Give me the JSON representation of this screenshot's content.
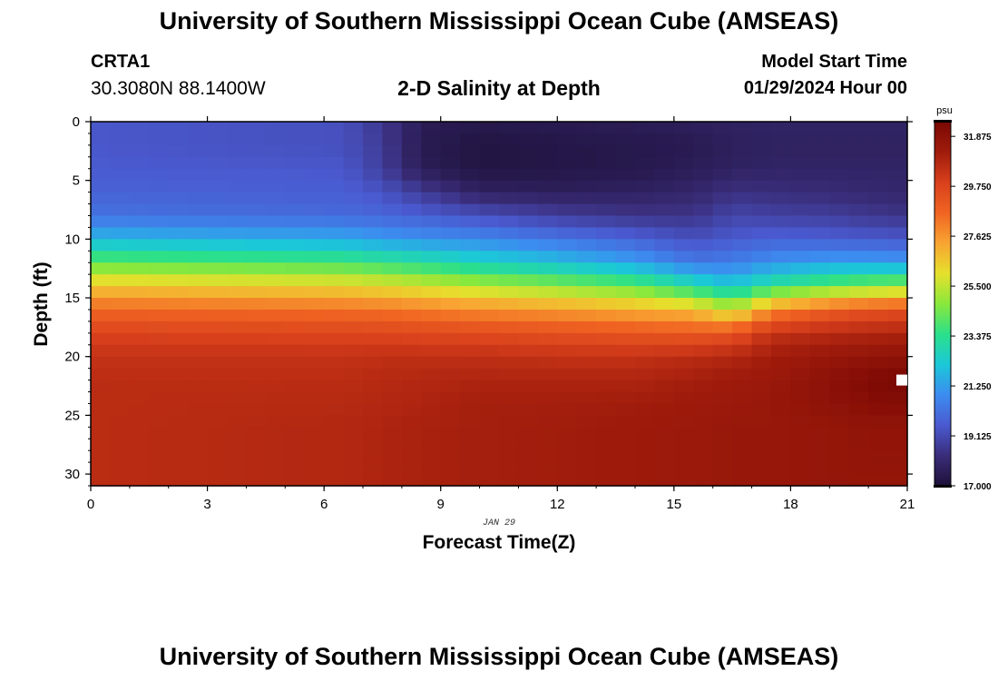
{
  "header": {
    "title": "University of Southern Mississippi Ocean Cube (AMSEAS)",
    "station_id": "CRTA1",
    "coords": "30.3080N  88.1400W",
    "subtitle": "2-D Salinity at Depth",
    "start_label": "Model Start Time",
    "start_value": "01/29/2024 Hour 00"
  },
  "footer": {
    "title": "University of Southern Mississippi Ocean Cube (AMSEAS)"
  },
  "chart_data": {
    "type": "heatmap",
    "title": "2-D Salinity at Depth",
    "xlabel": "Forecast Time(Z)",
    "ylabel": "Depth (ft)",
    "date_label": "JAN 29",
    "xlim": [
      0,
      21
    ],
    "ylim": [
      0,
      31
    ],
    "x_ticks": [
      "0",
      "3",
      "6",
      "9",
      "12",
      "15",
      "18",
      "21"
    ],
    "y_ticks": [
      "0",
      "5",
      "10",
      "15",
      "20",
      "25",
      "30"
    ],
    "colorbar": {
      "unit": "psu",
      "min": 17.0,
      "max": 32.5,
      "ticks": [
        "17.000",
        "19.125",
        "21.250",
        "23.375",
        "25.500",
        "27.625",
        "29.750",
        "31.875"
      ],
      "colors": [
        "#1e1038",
        "#3a2d7a",
        "#4a5ad0",
        "#3c8cf0",
        "#1bc8d8",
        "#2be08a",
        "#8ae83c",
        "#e6e02c",
        "#f8a432",
        "#f06422",
        "#d8401c",
        "#a01c0c",
        "#7a0804"
      ]
    },
    "time_columns": 42,
    "depth_nodes": [
      0,
      2,
      4,
      6,
      8,
      10,
      12,
      14,
      16,
      18,
      20,
      22,
      24,
      26,
      28,
      31
    ],
    "time_nodes": [
      0,
      6.5,
      7.5,
      8.5,
      10,
      12,
      14,
      15.5,
      16.5,
      17.5,
      19,
      20,
      21
    ],
    "salinity_profiles": [
      [
        19.5,
        19.5,
        19.6,
        19.8,
        20.2,
        21.8,
        24.2,
        26.6,
        28.6,
        29.8,
        30.4,
        30.6,
        30.6,
        30.6,
        30.6,
        30.6
      ],
      [
        19.3,
        19.3,
        19.5,
        19.7,
        20.0,
        21.5,
        23.8,
        26.3,
        28.4,
        29.7,
        30.4,
        30.6,
        30.7,
        30.8,
        30.8,
        30.8
      ],
      [
        18.6,
        18.7,
        18.8,
        19.4,
        19.9,
        21.2,
        23.5,
        26.1,
        28.3,
        29.7,
        30.5,
        30.7,
        30.8,
        30.9,
        30.9,
        30.9
      ],
      [
        17.6,
        17.5,
        17.6,
        18.7,
        19.7,
        21.0,
        23.2,
        25.8,
        28.1,
        29.6,
        30.5,
        30.8,
        30.9,
        31.0,
        31.0,
        31.0
      ],
      [
        17.4,
        17.2,
        17.2,
        17.8,
        19.3,
        20.8,
        22.6,
        25.3,
        27.8,
        29.5,
        30.5,
        30.9,
        31.1,
        31.1,
        31.1,
        31.1
      ],
      [
        17.5,
        17.3,
        17.3,
        17.7,
        18.8,
        20.3,
        22.0,
        24.8,
        27.5,
        29.3,
        30.4,
        30.9,
        31.1,
        31.2,
        31.2,
        31.2
      ],
      [
        17.6,
        17.4,
        17.4,
        17.8,
        18.5,
        19.8,
        21.3,
        24.2,
        27.1,
        29.1,
        30.4,
        30.9,
        31.2,
        31.3,
        31.3,
        31.3
      ],
      [
        17.7,
        17.5,
        17.6,
        18.0,
        18.5,
        19.3,
        20.4,
        23.0,
        26.8,
        29.0,
        30.6,
        31.1,
        31.3,
        31.4,
        31.4,
        31.4
      ],
      [
        17.8,
        17.7,
        17.8,
        18.4,
        19.0,
        19.6,
        20.5,
        22.2,
        25.5,
        29.2,
        30.8,
        31.3,
        31.4,
        31.5,
        31.5,
        31.5
      ],
      [
        17.9,
        17.8,
        17.9,
        18.3,
        18.9,
        19.8,
        21.0,
        23.3,
        27.8,
        30.4,
        31.2,
        31.4,
        31.5,
        31.5,
        31.5,
        31.5
      ],
      [
        17.9,
        17.8,
        17.9,
        18.2,
        18.8,
        19.7,
        21.3,
        24.2,
        28.8,
        30.7,
        31.5,
        31.9,
        31.8,
        31.6,
        31.6,
        31.6
      ],
      [
        17.9,
        17.8,
        17.9,
        18.1,
        18.6,
        19.6,
        21.3,
        24.6,
        29.2,
        30.8,
        31.7,
        32.3,
        32.1,
        31.7,
        31.7,
        31.6
      ],
      [
        17.9,
        17.8,
        17.9,
        18.0,
        18.5,
        19.5,
        21.2,
        24.8,
        29.4,
        30.9,
        31.8,
        32.5,
        32.2,
        31.7,
        31.7,
        31.6
      ]
    ],
    "annotations": [
      {
        "type": "marker",
        "x": 21,
        "y": 22,
        "color": "#ffffff"
      }
    ]
  }
}
